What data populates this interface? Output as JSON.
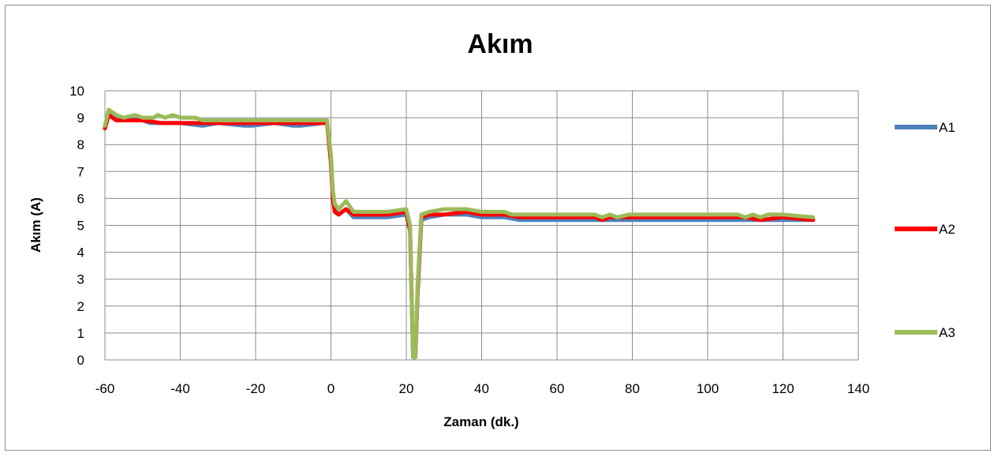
{
  "chart_data": {
    "type": "line",
    "title": "Akım",
    "xlabel": "Zaman (dk.)",
    "ylabel": "Akım (A)",
    "xlim": [
      -60,
      140
    ],
    "ylim": [
      0,
      10
    ],
    "xticks": [
      -60,
      -40,
      -20,
      0,
      20,
      40,
      60,
      80,
      100,
      120,
      140
    ],
    "yticks": [
      0,
      1,
      2,
      3,
      4,
      5,
      6,
      7,
      8,
      9,
      10
    ],
    "grid": true,
    "legend_position": "right",
    "series": [
      {
        "name": "A1",
        "color": "#4f81bd",
        "points": [
          [
            -60,
            8.6
          ],
          [
            -59,
            9.1
          ],
          [
            -57,
            9.0
          ],
          [
            -50,
            8.9
          ],
          [
            -48,
            8.8
          ],
          [
            -40,
            8.8
          ],
          [
            -34,
            8.7
          ],
          [
            -30,
            8.8
          ],
          [
            -23,
            8.7
          ],
          [
            -21,
            8.7
          ],
          [
            -15,
            8.8
          ],
          [
            -10,
            8.7
          ],
          [
            -8,
            8.7
          ],
          [
            -2,
            8.8
          ],
          [
            -1,
            8.8
          ],
          [
            0,
            7.5
          ],
          [
            0.5,
            6.2
          ],
          [
            1,
            5.6
          ],
          [
            2,
            5.4
          ],
          [
            4,
            5.6
          ],
          [
            6,
            5.3
          ],
          [
            10,
            5.3
          ],
          [
            15,
            5.3
          ],
          [
            20,
            5.4
          ],
          [
            21,
            4.8
          ],
          [
            21.8,
            0.1
          ],
          [
            22.4,
            0.1
          ],
          [
            23,
            2.5
          ],
          [
            24,
            5.2
          ],
          [
            26,
            5.3
          ],
          [
            30,
            5.4
          ],
          [
            36,
            5.4
          ],
          [
            40,
            5.3
          ],
          [
            46,
            5.3
          ],
          [
            50,
            5.2
          ],
          [
            60,
            5.2
          ],
          [
            70,
            5.2
          ],
          [
            80,
            5.2
          ],
          [
            90,
            5.2
          ],
          [
            100,
            5.2
          ],
          [
            110,
            5.2
          ],
          [
            120,
            5.2
          ],
          [
            128,
            5.2
          ]
        ]
      },
      {
        "name": "A2",
        "color": "#ff0000",
        "points": [
          [
            -60,
            8.6
          ],
          [
            -59,
            9.1
          ],
          [
            -57,
            8.9
          ],
          [
            -50,
            8.9
          ],
          [
            -45,
            8.8
          ],
          [
            -40,
            8.8
          ],
          [
            -34,
            8.8
          ],
          [
            -30,
            8.8
          ],
          [
            -20,
            8.8
          ],
          [
            -15,
            8.8
          ],
          [
            -10,
            8.8
          ],
          [
            -2,
            8.8
          ],
          [
            -1,
            8.8
          ],
          [
            0,
            7.3
          ],
          [
            0.5,
            6.0
          ],
          [
            1,
            5.5
          ],
          [
            2,
            5.4
          ],
          [
            4,
            5.6
          ],
          [
            6,
            5.4
          ],
          [
            10,
            5.4
          ],
          [
            15,
            5.4
          ],
          [
            20,
            5.5
          ],
          [
            21,
            4.8
          ],
          [
            21.8,
            0.1
          ],
          [
            22.4,
            0.1
          ],
          [
            23,
            2.5
          ],
          [
            24,
            5.3
          ],
          [
            26,
            5.4
          ],
          [
            30,
            5.4
          ],
          [
            36,
            5.5
          ],
          [
            40,
            5.4
          ],
          [
            46,
            5.4
          ],
          [
            50,
            5.3
          ],
          [
            60,
            5.3
          ],
          [
            70,
            5.3
          ],
          [
            72,
            5.2
          ],
          [
            74,
            5.3
          ],
          [
            80,
            5.3
          ],
          [
            90,
            5.3
          ],
          [
            100,
            5.3
          ],
          [
            110,
            5.3
          ],
          [
            114,
            5.2
          ],
          [
            120,
            5.3
          ],
          [
            128,
            5.2
          ]
        ]
      },
      {
        "name": "A3",
        "color": "#9bbb59",
        "points": [
          [
            -60,
            8.7
          ],
          [
            -59,
            9.3
          ],
          [
            -57,
            9.1
          ],
          [
            -55,
            9.0
          ],
          [
            -52,
            9.1
          ],
          [
            -50,
            9.0
          ],
          [
            -47,
            9.0
          ],
          [
            -46,
            9.1
          ],
          [
            -44,
            9.0
          ],
          [
            -42,
            9.1
          ],
          [
            -40,
            9.0
          ],
          [
            -36,
            9.0
          ],
          [
            -34,
            8.9
          ],
          [
            -30,
            8.9
          ],
          [
            -25,
            8.9
          ],
          [
            -20,
            8.9
          ],
          [
            -15,
            8.9
          ],
          [
            -10,
            8.9
          ],
          [
            -5,
            8.9
          ],
          [
            -1,
            8.9
          ],
          [
            0,
            7.6
          ],
          [
            0.5,
            6.3
          ],
          [
            1,
            5.8
          ],
          [
            2,
            5.6
          ],
          [
            4,
            5.9
          ],
          [
            6,
            5.5
          ],
          [
            10,
            5.5
          ],
          [
            15,
            5.5
          ],
          [
            20,
            5.6
          ],
          [
            21,
            5.0
          ],
          [
            21.8,
            0.1
          ],
          [
            22.4,
            0.1
          ],
          [
            23,
            2.8
          ],
          [
            24,
            5.4
          ],
          [
            26,
            5.5
          ],
          [
            30,
            5.6
          ],
          [
            36,
            5.6
          ],
          [
            40,
            5.5
          ],
          [
            46,
            5.5
          ],
          [
            48,
            5.4
          ],
          [
            60,
            5.4
          ],
          [
            70,
            5.4
          ],
          [
            72,
            5.3
          ],
          [
            74,
            5.4
          ],
          [
            76,
            5.3
          ],
          [
            79,
            5.4
          ],
          [
            90,
            5.4
          ],
          [
            100,
            5.4
          ],
          [
            108,
            5.4
          ],
          [
            110,
            5.3
          ],
          [
            112,
            5.4
          ],
          [
            114,
            5.3
          ],
          [
            116,
            5.4
          ],
          [
            120,
            5.4
          ],
          [
            128,
            5.3
          ]
        ]
      }
    ]
  }
}
